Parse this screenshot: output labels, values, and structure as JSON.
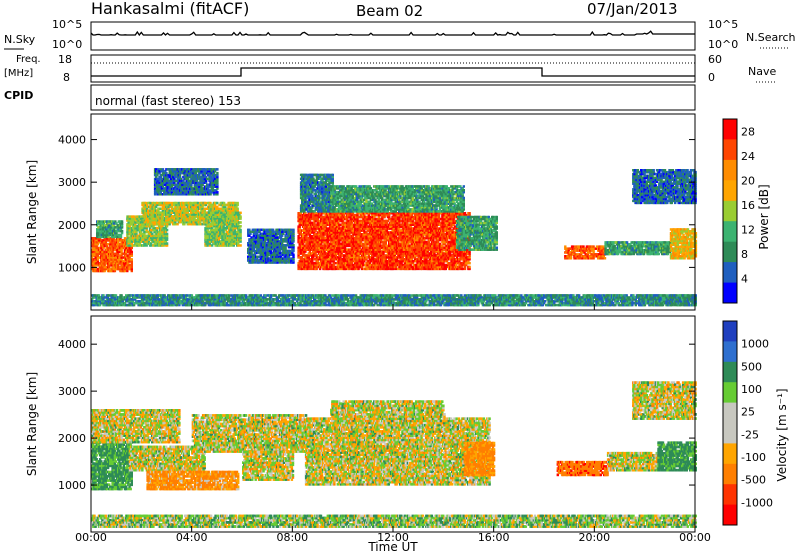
{
  "header": {
    "station": "Hankasalmi (fitACF)",
    "beam": "Beam 02",
    "date": "07/Jan/2013"
  },
  "noise_panel": {
    "left_label": "N.Sky",
    "right_label": "N.Search",
    "left_ticks": [
      "10^5",
      "10^0"
    ],
    "right_ticks": [
      "10^5",
      "10^0"
    ]
  },
  "freq_panel": {
    "label_line1": "Freq.",
    "label_line2": "[MHz]",
    "left_ticks": [
      "18",
      "8"
    ],
    "right_label": "Nave",
    "right_ticks": [
      "60",
      "0"
    ]
  },
  "cpid_panel": {
    "label": "CPID",
    "text": "normal (fast stereo) 153"
  },
  "colors": {
    "axis": "#000000",
    "power_scale": [
      "#0000ff",
      "#1f5fbf",
      "#2e8b57",
      "#3cb371",
      "#9acd32",
      "#ffa500",
      "#ff8c00",
      "#ff4500",
      "#ff0000"
    ],
    "velocity_scale": [
      "#1f3fbf",
      "#2e6fcf",
      "#2e8b57",
      "#66cc33",
      "#c8c8c0",
      "#c8c8c0",
      "#ffa500",
      "#ff7f00",
      "#ff3300",
      "#ff0000"
    ]
  },
  "chart_data": [
    {
      "type": "heatmap",
      "name": "power",
      "ylabel": "Slant Range [km]",
      "xlabel": "Time UT",
      "x_ticks": [
        "00:00",
        "04:00",
        "08:00",
        "12:00",
        "16:00",
        "20:00",
        "00:00"
      ],
      "y_ticks": [
        1000,
        2000,
        3000,
        4000
      ],
      "ylim": [
        0,
        4600
      ],
      "xlim": [
        0,
        24
      ],
      "colorbar_label": "Power [dB]",
      "colorbar_ticks": [
        28,
        24,
        20,
        16,
        12,
        8,
        4
      ],
      "colorbar_range": [
        0,
        30
      ],
      "blobs": [
        {
          "t0": 0.0,
          "t1": 1.6,
          "r0": 900,
          "r1": 1700,
          "value": 24
        },
        {
          "t0": 0.2,
          "t1": 1.2,
          "r0": 1700,
          "r1": 2100,
          "value": 10
        },
        {
          "t0": 1.4,
          "t1": 3.0,
          "r0": 1500,
          "r1": 2200,
          "value": 14
        },
        {
          "t0": 2.0,
          "t1": 5.8,
          "r0": 2000,
          "r1": 2500,
          "value": 16
        },
        {
          "t0": 2.5,
          "t1": 5.0,
          "r0": 2700,
          "r1": 3300,
          "value": 6
        },
        {
          "t0": 4.5,
          "t1": 5.9,
          "r0": 1500,
          "r1": 2300,
          "value": 14
        },
        {
          "t0": 6.2,
          "t1": 8.0,
          "r0": 1100,
          "r1": 1900,
          "value": 6
        },
        {
          "t0": 8.2,
          "t1": 15.0,
          "r0": 950,
          "r1": 2300,
          "value": 26
        },
        {
          "t0": 8.3,
          "t1": 9.6,
          "r0": 2300,
          "r1": 3200,
          "value": 7
        },
        {
          "t0": 9.5,
          "t1": 14.8,
          "r0": 2300,
          "r1": 2900,
          "value": 10
        },
        {
          "t0": 14.5,
          "t1": 16.1,
          "r0": 1400,
          "r1": 2200,
          "value": 10
        },
        {
          "t0": 18.8,
          "t1": 20.4,
          "r0": 1200,
          "r1": 1500,
          "value": 24
        },
        {
          "t0": 20.4,
          "t1": 23.0,
          "r0": 1300,
          "r1": 1600,
          "value": 10
        },
        {
          "t0": 23.0,
          "t1": 24.0,
          "r0": 1200,
          "r1": 1900,
          "value": 18
        },
        {
          "t0": 21.5,
          "t1": 24.0,
          "r0": 2500,
          "r1": 3300,
          "value": 6
        },
        {
          "t0": 0.0,
          "t1": 24.0,
          "r0": 100,
          "r1": 350,
          "value": 8
        }
      ]
    },
    {
      "type": "heatmap",
      "name": "velocity",
      "ylabel": "Slant Range [km]",
      "xlabel": "Time UT",
      "x_ticks": [
        "00:00",
        "04:00",
        "08:00",
        "12:00",
        "16:00",
        "20:00",
        "00:00"
      ],
      "y_ticks": [
        1000,
        2000,
        3000,
        4000
      ],
      "ylim": [
        0,
        4600
      ],
      "xlim": [
        0,
        24
      ],
      "colorbar_label": "Velocity [m s⁻¹]",
      "colorbar_ticks": [
        1000,
        500,
        100,
        25,
        -25,
        -100,
        -500,
        -1000
      ],
      "blobs": [
        {
          "t0": 0.0,
          "t1": 1.6,
          "r0": 900,
          "r1": 1900,
          "value": 150
        },
        {
          "t0": 0.0,
          "t1": 3.5,
          "r0": 1900,
          "r1": 2600,
          "value": 0
        },
        {
          "t0": 1.5,
          "t1": 4.5,
          "r0": 1300,
          "r1": 1800,
          "value": 0
        },
        {
          "t0": 2.2,
          "t1": 5.8,
          "r0": 900,
          "r1": 1300,
          "value": -120
        },
        {
          "t0": 4.0,
          "t1": 8.5,
          "r0": 1700,
          "r1": 2500,
          "value": 0
        },
        {
          "t0": 6.0,
          "t1": 8.0,
          "r0": 1100,
          "r1": 1700,
          "value": 0
        },
        {
          "t0": 8.5,
          "t1": 15.8,
          "r0": 1000,
          "r1": 2400,
          "value": 0
        },
        {
          "t0": 9.5,
          "t1": 14.0,
          "r0": 2400,
          "r1": 2800,
          "value": 0
        },
        {
          "t0": 14.8,
          "t1": 16.0,
          "r0": 1200,
          "r1": 1900,
          "value": -150
        },
        {
          "t0": 18.5,
          "t1": 20.5,
          "r0": 1200,
          "r1": 1500,
          "value": -450
        },
        {
          "t0": 20.5,
          "t1": 22.5,
          "r0": 1300,
          "r1": 1700,
          "value": 0
        },
        {
          "t0": 22.5,
          "t1": 24.0,
          "r0": 1300,
          "r1": 1900,
          "value": 150
        },
        {
          "t0": 21.5,
          "t1": 24.0,
          "r0": 2400,
          "r1": 3200,
          "value": 0
        },
        {
          "t0": 0.0,
          "t1": 24.0,
          "r0": 100,
          "r1": 350,
          "value": 50
        }
      ]
    }
  ]
}
